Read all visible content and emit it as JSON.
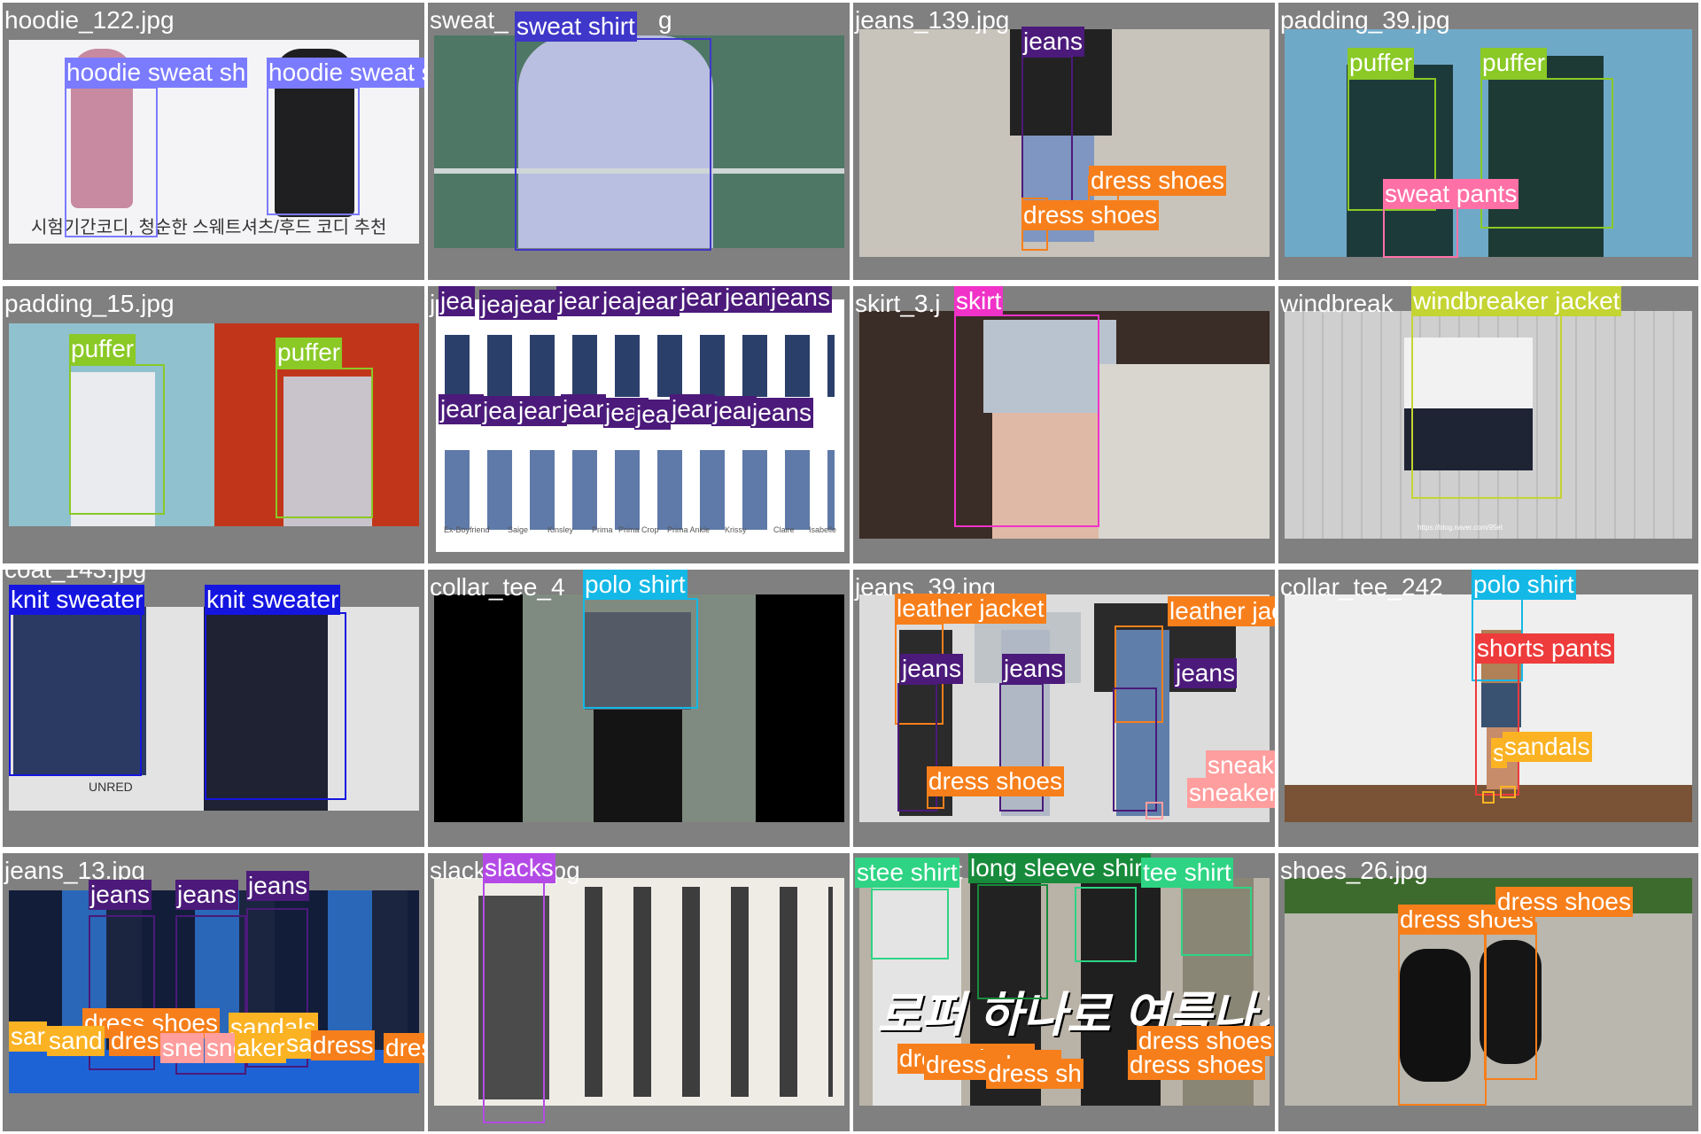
{
  "colors": {
    "sweat_shirt": "#3f37c9",
    "hoodie_sweat_shirt": "#7b7bff",
    "jeans": "#4b1a7a",
    "dress_shoes": "#f77f1b",
    "puffer": "#8ac926",
    "sweat_pants": "#ff70a6",
    "skirt": "#f032c8",
    "windbreaker_jacket": "#c4d433",
    "knit_sweater": "#1515e0",
    "polo_shirt": "#14b8e6",
    "leather_jacket": "#f77f1b",
    "sneakers": "#ff9e9e",
    "shorts_pants": "#ee3b3b",
    "sandals": "#fbb324",
    "slacks": "#b44ae6",
    "tee_shirt": "#2ed483",
    "long_sleeve_shirt": "#178b3b",
    "tile_bg": "#808080"
  },
  "tiles": [
    {
      "filename": "hoodie_122.jpg",
      "caption": "시험기간코디, 청순한 스웨트셔츠/후드 코디 추천",
      "labels": [
        "hoodie sweat sh",
        "hoodie sweat shirt"
      ]
    },
    {
      "filename": "sweat_shirt_17.jpg",
      "visible_filename": "sweat_",
      "tail": "g",
      "labels": [
        "sweat shirt"
      ]
    },
    {
      "filename": "jeans_139.jpg",
      "labels": [
        "jeans",
        "dress shoes",
        "dress shoes"
      ]
    },
    {
      "filename": "padding_39.jpg",
      "labels": [
        "puffer",
        "puffer",
        "sweat pants"
      ]
    },
    {
      "filename": "padding_15.jpg",
      "labels": [
        "puffer",
        "puffer"
      ]
    },
    {
      "filename": "j",
      "labels_top": [
        "jea",
        "jea",
        "jear",
        "jear",
        "jea",
        "jear",
        "jear",
        "jean",
        "jeans"
      ],
      "labels_bottom": [
        "jear",
        "jear",
        "jean",
        "jear",
        "jear",
        "jea",
        "jear",
        "jear",
        "jeans"
      ],
      "brand_captions": [
        "Ex-Boyfriend",
        "Saige",
        "Kinsley",
        "Prima",
        "Prima Crop",
        "Prima Ankle",
        "Krissy",
        "Claire",
        "Isabelle"
      ]
    },
    {
      "filename": "skirt_3.j",
      "labels": [
        "skirt"
      ]
    },
    {
      "filename": "windbreak",
      "url_caption": "https://blog.naver.com/95et",
      "labels": [
        "windbreaker jacket"
      ]
    },
    {
      "filename": "coat_143.jpg",
      "labels": [
        "knit sweater",
        "knit sweater"
      ],
      "book_text": "UNRED"
    },
    {
      "filename": "collar_tee_4",
      "labels": [
        "polo shirt"
      ]
    },
    {
      "filename": "jeans_39.jpg",
      "labels": [
        "leather jacket",
        "leather jacket",
        "jeans",
        "jeans",
        "jeans",
        "dress shoes",
        "sneakers",
        "sneakers"
      ]
    },
    {
      "filename": "collar_tee_242",
      "labels": [
        "polo shirt",
        "shorts pants",
        "sandals",
        "s"
      ]
    },
    {
      "filename": "jeans_13.jpg",
      "labels": [
        "jeans",
        "jeans",
        "jeans",
        "dress shoes",
        "sandals",
        "sar",
        "sand",
        "dres",
        "sne",
        "sne",
        "aker",
        "sa",
        "dress",
        "dress shoes"
      ]
    },
    {
      "filename": "slacks_13.jpg",
      "labels": [
        "slacks"
      ]
    },
    {
      "filename": "stee_shirt",
      "overlay": "로퍼 하나로 여름나기!",
      "labels": [
        "stee shirt",
        "long sleeve shirt",
        "tee shirt",
        "dress shoes",
        "dress shoes",
        "dress shoes",
        "dress shoes",
        "dress sh",
        "dress shoes"
      ]
    },
    {
      "filename": "shoes_26.jpg",
      "labels": [
        "dress shoes",
        "dress shoes"
      ]
    }
  ]
}
